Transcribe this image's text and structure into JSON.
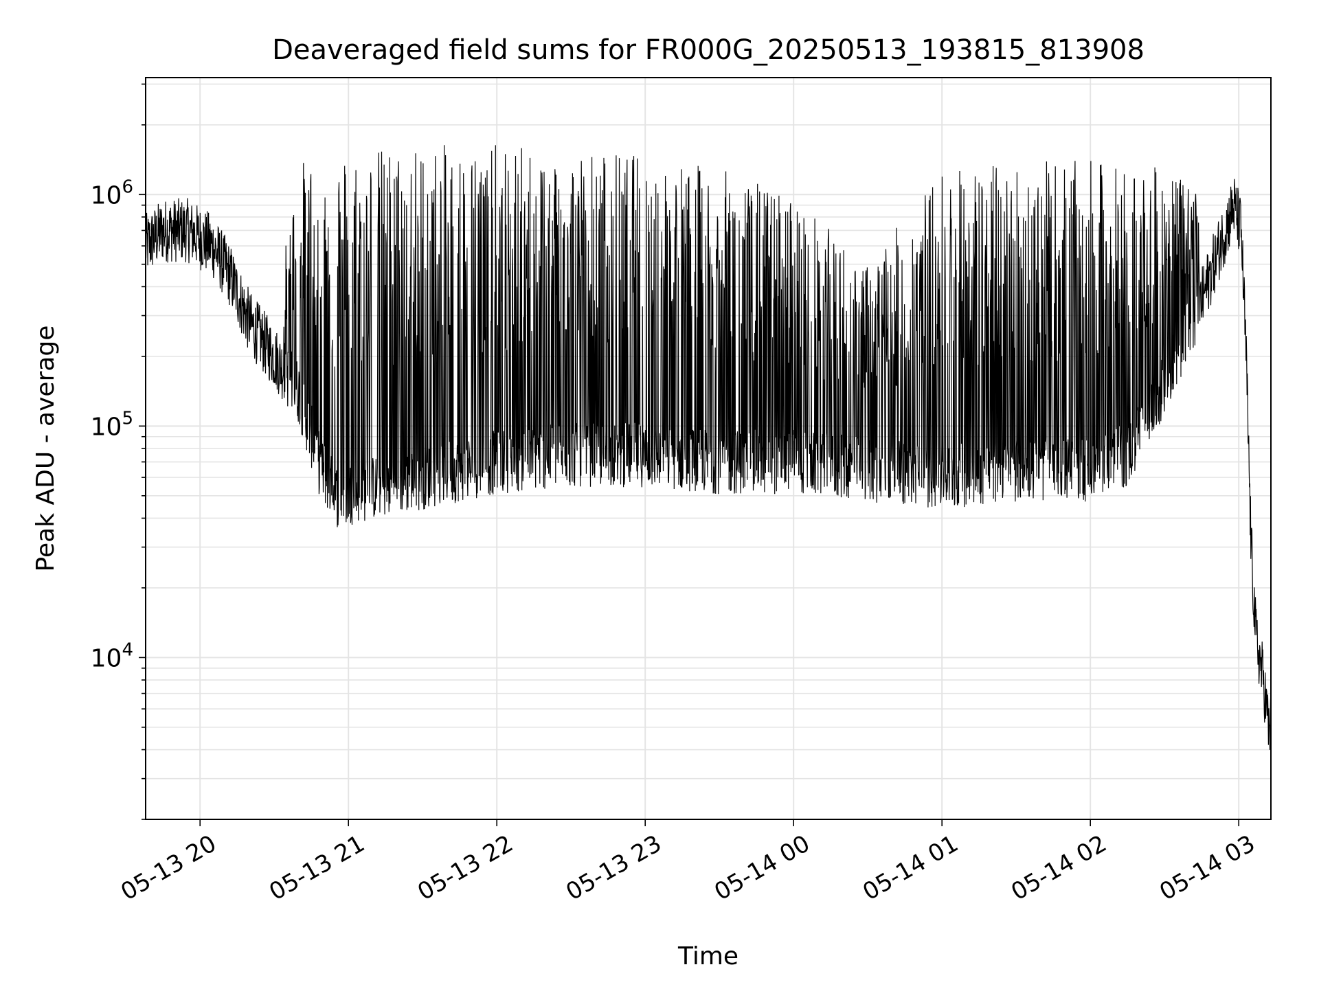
{
  "chart_data": {
    "type": "line",
    "title": "Deaveraged field sums for FR000G_20250513_193815_813908",
    "xlabel": "Time",
    "ylabel": "Peak ADU - average",
    "yscale": "log",
    "xlim": [
      "2025-05-13 19:38",
      "2025-05-14 03:13"
    ],
    "ylim": [
      2000,
      3200000
    ],
    "grid": true,
    "x_ticks": [
      {
        "t": "2025-05-13 20:00",
        "label": "05-13 20"
      },
      {
        "t": "2025-05-13 21:00",
        "label": "05-13 21"
      },
      {
        "t": "2025-05-13 22:00",
        "label": "05-13 22"
      },
      {
        "t": "2025-05-13 23:00",
        "label": "05-13 23"
      },
      {
        "t": "2025-05-14 00:00",
        "label": "05-14 00"
      },
      {
        "t": "2025-05-14 01:00",
        "label": "05-14 01"
      },
      {
        "t": "2025-05-14 02:00",
        "label": "05-14 02"
      },
      {
        "t": "2025-05-14 03:00",
        "label": "05-14 03"
      }
    ],
    "y_ticks": [
      {
        "value": 10000,
        "base": "10",
        "exp": "4"
      },
      {
        "value": 100000,
        "base": "10",
        "exp": "5"
      },
      {
        "value": 1000000,
        "base": "10",
        "exp": "6"
      }
    ],
    "line_color": "#000000",
    "series_envelope": [
      {
        "t": "2025-05-13 19:38",
        "base": 600000,
        "peak": 700000
      },
      {
        "t": "2025-05-13 19:45",
        "base": 700000,
        "peak": 850000
      },
      {
        "t": "2025-05-13 19:55",
        "base": 700000,
        "peak": 950000
      },
      {
        "t": "2025-05-13 20:00",
        "base": 650000,
        "peak": 900000
      },
      {
        "t": "2025-05-13 20:05",
        "base": 600000,
        "peak": 800000
      },
      {
        "t": "2025-05-13 20:12",
        "base": 450000,
        "peak": 600000
      },
      {
        "t": "2025-05-13 20:20",
        "base": 280000,
        "peak": 400000
      },
      {
        "t": "2025-05-13 20:30",
        "base": 200000,
        "peak": 300000
      },
      {
        "t": "2025-05-13 20:40",
        "base": 140000,
        "peak": 1400000
      },
      {
        "t": "2025-05-13 20:48",
        "base": 70000,
        "peak": 1500000
      },
      {
        "t": "2025-05-13 20:55",
        "base": 50000,
        "peak": 1600000
      },
      {
        "t": "2025-05-13 21:30",
        "base": 60000,
        "peak": 1650000
      },
      {
        "t": "2025-05-13 22:00",
        "base": 70000,
        "peak": 1650000
      },
      {
        "t": "2025-05-13 22:30",
        "base": 75000,
        "peak": 1600000
      },
      {
        "t": "2025-05-13 23:00",
        "base": 75000,
        "peak": 1500000
      },
      {
        "t": "2025-05-13 23:30",
        "base": 70000,
        "peak": 1300000
      },
      {
        "t": "2025-05-14 00:00",
        "base": 70000,
        "peak": 1000000
      },
      {
        "t": "2025-05-14 00:30",
        "base": 65000,
        "peak": 500000
      },
      {
        "t": "2025-05-14 01:00",
        "base": 60000,
        "peak": 1300000
      },
      {
        "t": "2025-05-14 01:30",
        "base": 65000,
        "peak": 1400000
      },
      {
        "t": "2025-05-14 02:00",
        "base": 65000,
        "peak": 1400000
      },
      {
        "t": "2025-05-14 02:15",
        "base": 75000,
        "peak": 1350000
      },
      {
        "t": "2025-05-14 02:30",
        "base": 150000,
        "peak": 1300000
      },
      {
        "t": "2025-05-14 02:45",
        "base": 350000,
        "peak": 1000000
      },
      {
        "t": "2025-05-14 02:58",
        "base": 900000,
        "peak": 1100000
      },
      {
        "t": "2025-05-14 03:01",
        "base": 700000,
        "peak": 900000
      },
      {
        "t": "2025-05-14 03:03",
        "base": 200000,
        "peak": 300000
      },
      {
        "t": "2025-05-14 03:05",
        "base": 30000,
        "peak": 60000
      },
      {
        "t": "2025-05-14 03:07",
        "base": 12000,
        "peak": 20000
      },
      {
        "t": "2025-05-14 03:10",
        "base": 8000,
        "peak": 12000
      },
      {
        "t": "2025-05-14 03:12",
        "base": 5000,
        "peak": 10000
      }
    ]
  }
}
